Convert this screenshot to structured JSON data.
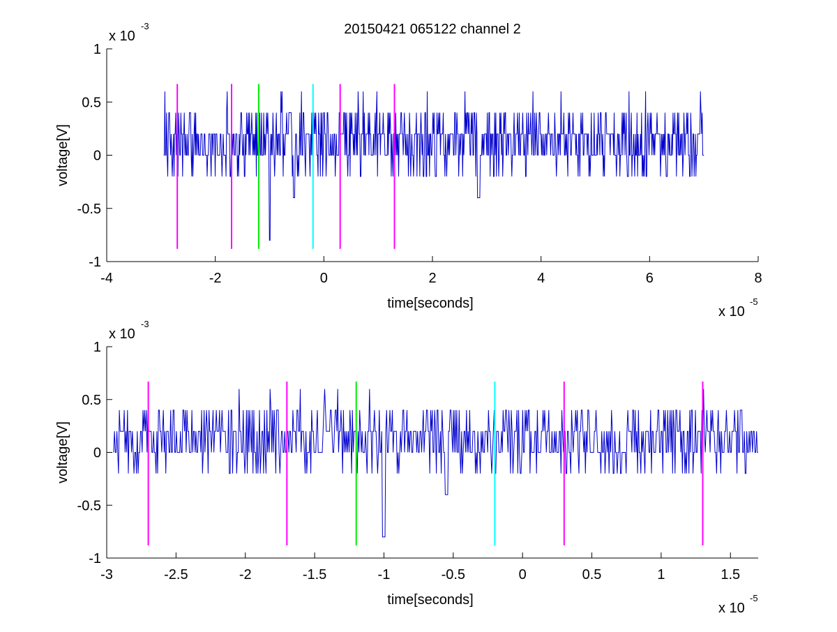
{
  "title": "20150421 065122 channel 2",
  "colors": {
    "signal": "#0000cc",
    "magenta": "#ff00ff",
    "green": "#00ee00",
    "cyan": "#00ffff",
    "axis": "#000000",
    "background": "#ffffff"
  },
  "chart_data": [
    {
      "type": "line",
      "title": "20150421 065122 channel 2",
      "xlabel": "time[seconds]",
      "ylabel": "voltage[V]",
      "x_multiplier_label": {
        "base": "x 10",
        "exp": "-5"
      },
      "y_multiplier_label": {
        "base": "x 10",
        "exp": "-3"
      },
      "xlim": [
        -4,
        8
      ],
      "ylim": [
        -1,
        1
      ],
      "xticks": [
        -4,
        -2,
        0,
        2,
        4,
        6,
        8
      ],
      "xtick_labels": [
        "-4",
        "-2",
        "0",
        "2",
        "4",
        "6",
        "8"
      ],
      "yticks": [
        -1,
        -0.5,
        0,
        0.5,
        1
      ],
      "ytick_labels": [
        "-1",
        "-0.5",
        "0",
        "0.5",
        "1"
      ],
      "grid": false,
      "series": [
        {
          "color": "#0000cc",
          "signal": {
            "x_start": -2.95,
            "x_end": 7.0,
            "levels": [
              -0.2,
              0,
              0.2,
              0.4
            ],
            "min": -0.8,
            "max": 0.6
          }
        }
      ],
      "markers": [
        {
          "x": -2.7,
          "color": "#ff00ff",
          "y_from": -0.88,
          "y_to": 0.67
        },
        {
          "x": -1.7,
          "color": "#ff00ff",
          "y_from": -0.88,
          "y_to": 0.67
        },
        {
          "x": -1.2,
          "color": "#00ee00",
          "y_from": -0.88,
          "y_to": 0.67
        },
        {
          "x": -0.2,
          "color": "#00ffff",
          "y_from": -0.88,
          "y_to": 0.67
        },
        {
          "x": 0.3,
          "color": "#ff00ff",
          "y_from": -0.88,
          "y_to": 0.67
        },
        {
          "x": 1.3,
          "color": "#ff00ff",
          "y_from": -0.88,
          "y_to": 0.67
        }
      ]
    },
    {
      "type": "line",
      "title": "",
      "xlabel": "time[seconds]",
      "ylabel": "voltage[V]",
      "x_multiplier_label": {
        "base": "x 10",
        "exp": "-5"
      },
      "y_multiplier_label": {
        "base": "x 10",
        "exp": "-3"
      },
      "xlim": [
        -3.0,
        1.7
      ],
      "ylim": [
        -1,
        1
      ],
      "xticks": [
        -3,
        -2.5,
        -2,
        -1.5,
        -1,
        -0.5,
        0,
        0.5,
        1,
        1.5
      ],
      "xtick_labels": [
        "-3",
        "-2.5",
        "-2",
        "-1.5",
        "-1",
        "-0.5",
        "0",
        "0.5",
        "1",
        "1.5"
      ],
      "yticks": [
        -1,
        -0.5,
        0,
        0.5,
        1
      ],
      "ytick_labels": [
        "-1",
        "-0.5",
        "0",
        "0.5",
        "1"
      ],
      "grid": false,
      "series": [
        {
          "color": "#0000cc",
          "signal": {
            "x_start": -2.95,
            "x_end": 1.7,
            "levels": [
              -0.2,
              0,
              0.2,
              0.4
            ],
            "min": -0.8,
            "max": 0.6
          }
        }
      ],
      "markers": [
        {
          "x": -2.7,
          "color": "#ff00ff",
          "y_from": -0.88,
          "y_to": 0.67
        },
        {
          "x": -1.7,
          "color": "#ff00ff",
          "y_from": -0.88,
          "y_to": 0.67
        },
        {
          "x": -1.2,
          "color": "#00ee00",
          "y_from": -0.88,
          "y_to": 0.67
        },
        {
          "x": -0.2,
          "color": "#00ffff",
          "y_from": -0.88,
          "y_to": 0.67
        },
        {
          "x": 0.3,
          "color": "#ff00ff",
          "y_from": -0.88,
          "y_to": 0.67
        },
        {
          "x": 1.3,
          "color": "#ff00ff",
          "y_from": -0.88,
          "y_to": 0.67
        }
      ]
    }
  ]
}
